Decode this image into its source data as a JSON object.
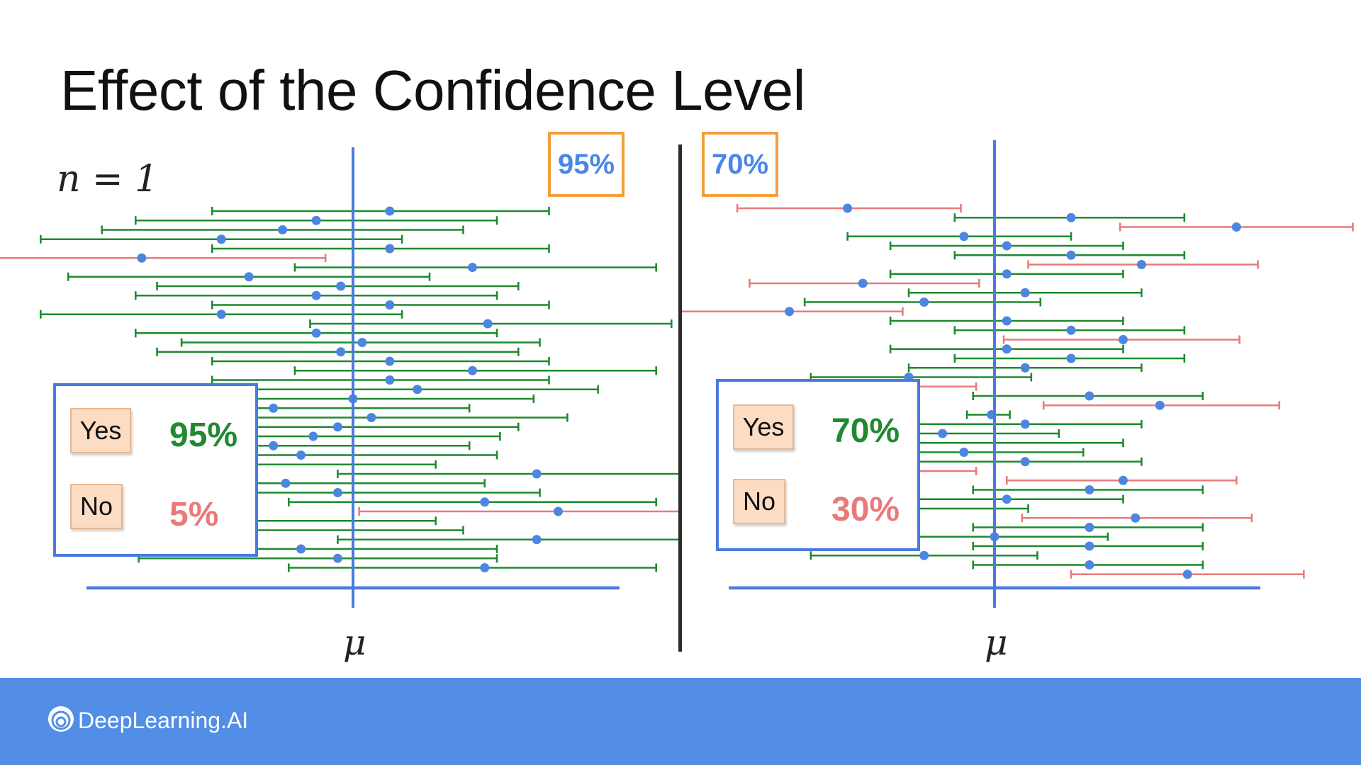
{
  "slide": {
    "title": "Effect of the Confidence Level",
    "sample_size_label": "n = 1",
    "mean_symbol": "μ",
    "brand": "DeepLearning.AI",
    "logo_icon": "deeplearning-logo-icon"
  },
  "colors": {
    "hit": "#1f8a2e",
    "miss": "#ea7a7a",
    "point": "#4d86e0",
    "axis": "#4a7be0",
    "accent_box": "#f2a03d",
    "footer": "#528ee6"
  },
  "panels": [
    {
      "confidence_label": "95%",
      "legend": {
        "yes_label": "Yes",
        "yes_value": "95%",
        "no_label": "No",
        "no_value": "5%"
      },
      "intervals": [
        {
          "lo": -0.92,
          "hi": 1.28,
          "pt": 0.24,
          "hit": true
        },
        {
          "lo": -1.42,
          "hi": 0.94,
          "pt": -0.24,
          "hit": true
        },
        {
          "lo": -1.64,
          "hi": 0.72,
          "pt": -0.46,
          "hit": true
        },
        {
          "lo": -2.04,
          "hi": 0.32,
          "pt": -0.86,
          "hit": true
        },
        {
          "lo": -0.92,
          "hi": 1.28,
          "pt": 0.24,
          "hit": true
        },
        {
          "lo": -2.58,
          "hi": -0.18,
          "pt": -1.38,
          "hit": false
        },
        {
          "lo": -0.38,
          "hi": 1.98,
          "pt": 0.78,
          "hit": true
        },
        {
          "lo": -1.86,
          "hi": 0.5,
          "pt": -0.68,
          "hit": true
        },
        {
          "lo": -1.28,
          "hi": 1.08,
          "pt": -0.08,
          "hit": true
        },
        {
          "lo": -1.42,
          "hi": 0.94,
          "pt": -0.24,
          "hit": true
        },
        {
          "lo": -0.92,
          "hi": 1.28,
          "pt": 0.24,
          "hit": true
        },
        {
          "lo": -2.04,
          "hi": 0.32,
          "pt": -0.86,
          "hit": true
        },
        {
          "lo": -0.28,
          "hi": 2.08,
          "pt": 0.88,
          "hit": true
        },
        {
          "lo": -1.42,
          "hi": 0.94,
          "pt": -0.24,
          "hit": true
        },
        {
          "lo": -1.12,
          "hi": 1.22,
          "pt": 0.06,
          "hit": true
        },
        {
          "lo": -1.28,
          "hi": 1.08,
          "pt": -0.08,
          "hit": true
        },
        {
          "lo": -0.92,
          "hi": 1.28,
          "pt": 0.24,
          "hit": true
        },
        {
          "lo": -0.38,
          "hi": 1.98,
          "pt": 0.78,
          "hit": true
        },
        {
          "lo": -0.92,
          "hi": 1.28,
          "pt": 0.24,
          "hit": true
        },
        {
          "lo": -0.76,
          "hi": 1.6,
          "pt": 0.42,
          "hit": true
        },
        {
          "lo": -1.18,
          "hi": 1.18,
          "pt": 0.0,
          "hit": true
        },
        {
          "lo": -0.68,
          "hi": 0.76,
          "pt": -0.52,
          "hit": true
        },
        {
          "lo": -1.12,
          "hi": 1.4,
          "pt": 0.12,
          "hit": true
        },
        {
          "lo": -1.28,
          "hi": 1.08,
          "pt": -0.1,
          "hit": true
        },
        {
          "lo": -1.4,
          "hi": 0.96,
          "pt": -0.26,
          "hit": true
        },
        {
          "lo": -1.6,
          "hi": 0.76,
          "pt": -0.52,
          "hit": true
        },
        {
          "lo": -1.58,
          "hi": 0.94,
          "pt": -0.34,
          "hit": true
        },
        {
          "lo": -1.72,
          "hi": 0.54,
          "pt": -0.76,
          "hit": true
        },
        {
          "lo": -0.1,
          "hi": 2.48,
          "pt": 1.2,
          "hit": true
        },
        {
          "lo": -1.34,
          "hi": 0.86,
          "pt": -0.44,
          "hit": true
        },
        {
          "lo": -1.42,
          "hi": 1.22,
          "pt": -0.1,
          "hit": true
        },
        {
          "lo": -0.42,
          "hi": 1.98,
          "pt": 0.86,
          "hit": true
        },
        {
          "lo": 0.04,
          "hi": 2.6,
          "pt": 1.34,
          "hit": false
        },
        {
          "lo": -1.72,
          "hi": 0.54,
          "pt": -0.76,
          "hit": true
        },
        {
          "lo": -1.64,
          "hi": 0.72,
          "pt": -0.68,
          "hit": true
        },
        {
          "lo": -0.1,
          "hi": 2.48,
          "pt": 1.2,
          "hit": true
        },
        {
          "lo": -1.64,
          "hi": 0.94,
          "pt": -0.34,
          "hit": true
        },
        {
          "lo": -1.4,
          "hi": 0.94,
          "pt": -0.1,
          "hit": true
        },
        {
          "lo": -0.42,
          "hi": 1.98,
          "pt": 0.86,
          "hit": true
        }
      ]
    },
    {
      "confidence_label": "70%",
      "legend": {
        "yes_label": "Yes",
        "yes_value": "70%",
        "no_label": "No",
        "no_value": "30%"
      },
      "intervals": [
        {
          "lo": -1.68,
          "hi": -0.22,
          "pt": -0.96,
          "hit": false
        },
        {
          "lo": -0.26,
          "hi": 1.24,
          "pt": 0.5,
          "hit": true
        },
        {
          "lo": 0.82,
          "hi": 2.34,
          "pt": 1.58,
          "hit": false
        },
        {
          "lo": -0.96,
          "hi": 0.5,
          "pt": -0.2,
          "hit": true
        },
        {
          "lo": -0.68,
          "hi": 0.84,
          "pt": 0.08,
          "hit": true
        },
        {
          "lo": -0.26,
          "hi": 1.24,
          "pt": 0.5,
          "hit": true
        },
        {
          "lo": 0.22,
          "hi": 1.72,
          "pt": 0.96,
          "hit": false
        },
        {
          "lo": -0.68,
          "hi": 0.84,
          "pt": 0.08,
          "hit": true
        },
        {
          "lo": -1.6,
          "hi": -0.1,
          "pt": -0.86,
          "hit": false
        },
        {
          "lo": -0.56,
          "hi": 0.96,
          "pt": 0.2,
          "hit": true
        },
        {
          "lo": -1.24,
          "hi": 0.3,
          "pt": -0.46,
          "hit": true
        },
        {
          "lo": -2.1,
          "hi": -0.6,
          "pt": -1.34,
          "hit": false
        },
        {
          "lo": -0.68,
          "hi": 0.84,
          "pt": 0.08,
          "hit": true
        },
        {
          "lo": -0.26,
          "hi": 1.24,
          "pt": 0.5,
          "hit": true
        },
        {
          "lo": 0.06,
          "hi": 1.6,
          "pt": 0.84,
          "hit": false
        },
        {
          "lo": -0.68,
          "hi": 0.84,
          "pt": 0.08,
          "hit": true
        },
        {
          "lo": -0.26,
          "hi": 1.24,
          "pt": 0.5,
          "hit": true
        },
        {
          "lo": -0.56,
          "hi": 0.96,
          "pt": 0.2,
          "hit": true
        },
        {
          "lo": -1.2,
          "hi": 0.24,
          "pt": -0.56,
          "hit": true
        },
        {
          "lo": -1.22,
          "hi": -0.12,
          "pt": -0.62,
          "hit": false
        },
        {
          "lo": -0.14,
          "hi": 1.36,
          "pt": 0.62,
          "hit": true
        },
        {
          "lo": 0.32,
          "hi": 1.86,
          "pt": 1.08,
          "hit": false
        },
        {
          "lo": -0.18,
          "hi": 0.1,
          "pt": -0.02,
          "hit": true
        },
        {
          "lo": -1.24,
          "hi": 0.96,
          "pt": 0.2,
          "hit": true
        },
        {
          "lo": -1.24,
          "hi": 0.42,
          "pt": -0.34,
          "hit": true
        },
        {
          "lo": -1.42,
          "hi": 0.84,
          "pt": -0.56,
          "hit": true
        },
        {
          "lo": -0.88,
          "hi": 0.58,
          "pt": -0.2,
          "hit": true
        },
        {
          "lo": -1.24,
          "hi": 0.96,
          "pt": 0.2,
          "hit": true
        },
        {
          "lo": -1.02,
          "hi": -0.12,
          "pt": -0.62,
          "hit": false
        },
        {
          "lo": 0.08,
          "hi": 1.58,
          "pt": 0.84,
          "hit": false
        },
        {
          "lo": -0.14,
          "hi": 1.36,
          "pt": 0.62,
          "hit": true
        },
        {
          "lo": -0.68,
          "hi": 0.84,
          "pt": 0.08,
          "hit": true
        },
        {
          "lo": -1.38,
          "hi": 0.22,
          "pt": -0.58,
          "hit": true
        },
        {
          "lo": 0.18,
          "hi": 1.68,
          "pt": 0.92,
          "hit": false
        },
        {
          "lo": -0.14,
          "hi": 1.36,
          "pt": 0.62,
          "hit": true
        },
        {
          "lo": -0.66,
          "hi": 0.74,
          "pt": 0.0,
          "hit": true
        },
        {
          "lo": -0.14,
          "hi": 1.36,
          "pt": 0.62,
          "hit": true
        },
        {
          "lo": -1.2,
          "hi": 0.28,
          "pt": -0.46,
          "hit": true
        },
        {
          "lo": -0.14,
          "hi": 1.36,
          "pt": 0.62,
          "hit": true
        },
        {
          "lo": 0.5,
          "hi": 2.02,
          "pt": 1.26,
          "hit": false
        }
      ]
    }
  ]
}
